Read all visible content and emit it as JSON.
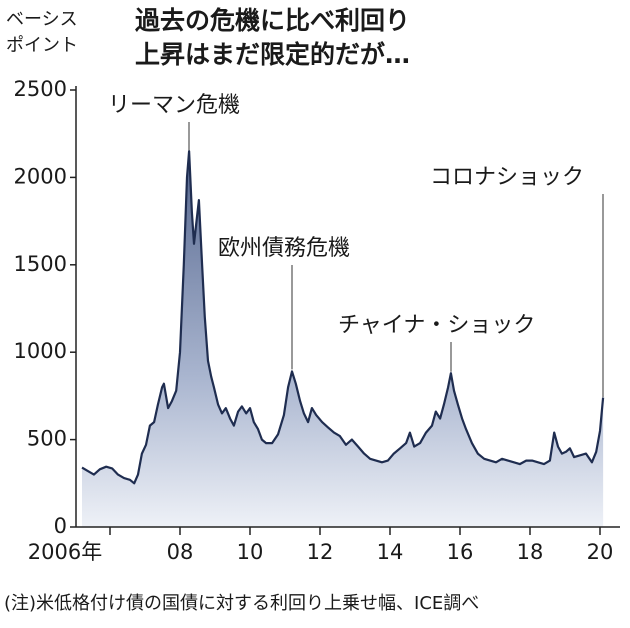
{
  "chart_data": {
    "type": "area",
    "title": [
      "過去の危機に比べ利回り",
      "上昇はまだ限定的だが…"
    ],
    "y_label": [
      "ベーシス",
      "ポイント"
    ],
    "note": "(注)米低格付け債の国債に対する利回り上乗せ幅、ICE調べ",
    "annotations": [
      "リーマン危機",
      "欧州債務危機",
      "チャイナ・ショック",
      "コロナショック"
    ],
    "color": "#1f2d50",
    "x": [
      2005.2,
      2005.37,
      2005.54,
      2005.71,
      2005.89,
      2006.06,
      2006.23,
      2006.4,
      2006.57,
      2006.69,
      2006.8,
      2006.91,
      2007.03,
      2007.14,
      2007.26,
      2007.37,
      2007.49,
      2007.54,
      2007.66,
      2007.77,
      2007.89,
      2008.0,
      2008.11,
      2008.2,
      2008.26,
      2008.34,
      2008.4,
      2008.49,
      2008.54,
      2008.63,
      2008.71,
      2008.8,
      2008.89,
      2008.97,
      2009.09,
      2009.2,
      2009.31,
      2009.43,
      2009.54,
      2009.66,
      2009.77,
      2009.89,
      2010.0,
      2010.11,
      2010.23,
      2010.34,
      2010.46,
      2010.63,
      2010.8,
      2010.97,
      2011.09,
      2011.2,
      2011.31,
      2011.43,
      2011.54,
      2011.66,
      2011.77,
      2011.89,
      2012.06,
      2012.23,
      2012.4,
      2012.57,
      2012.74,
      2012.91,
      2013.09,
      2013.26,
      2013.43,
      2013.6,
      2013.77,
      2013.94,
      2014.11,
      2014.29,
      2014.46,
      2014.57,
      2014.69,
      2014.86,
      2015.03,
      2015.2,
      2015.31,
      2015.43,
      2015.54,
      2015.66,
      2015.74,
      2015.83,
      2015.94,
      2016.06,
      2016.17,
      2016.34,
      2016.51,
      2016.69,
      2016.86,
      2017.03,
      2017.2,
      2017.37,
      2017.54,
      2017.71,
      2017.89,
      2018.06,
      2018.23,
      2018.4,
      2018.57,
      2018.69,
      2018.8,
      2018.91,
      2019.03,
      2019.14,
      2019.26,
      2019.43,
      2019.6,
      2019.77,
      2019.89,
      2020.0,
      2020.09
    ],
    "y": [
      340,
      320,
      300,
      330,
      345,
      335,
      300,
      280,
      270,
      250,
      300,
      420,
      470,
      580,
      600,
      700,
      800,
      820,
      680,
      720,
      780,
      1000,
      1500,
      2000,
      2150,
      1800,
      1620,
      1780,
      1870,
      1500,
      1200,
      950,
      860,
      800,
      700,
      650,
      680,
      620,
      580,
      660,
      690,
      650,
      680,
      600,
      560,
      500,
      480,
      480,
      530,
      640,
      800,
      890,
      820,
      720,
      650,
      600,
      680,
      640,
      600,
      570,
      540,
      520,
      470,
      500,
      460,
      420,
      390,
      380,
      370,
      380,
      420,
      450,
      480,
      540,
      460,
      480,
      540,
      580,
      660,
      620,
      700,
      800,
      880,
      780,
      700,
      620,
      560,
      480,
      420,
      390,
      380,
      370,
      390,
      380,
      370,
      360,
      380,
      380,
      370,
      360,
      380,
      540,
      460,
      420,
      430,
      450,
      400,
      410,
      420,
      370,
      430,
      550,
      740
    ],
    "xlim": [
      2005.2,
      2020.2
    ],
    "xticks": [
      {
        "value": 2006,
        "label": "2006年"
      },
      {
        "value": 2008,
        "label": "08"
      },
      {
        "value": 2010,
        "label": "10"
      },
      {
        "value": 2012,
        "label": "12"
      },
      {
        "value": 2014,
        "label": "14"
      },
      {
        "value": 2016,
        "label": "16"
      },
      {
        "value": 2018,
        "label": "18"
      },
      {
        "value": 2020,
        "label": "20"
      }
    ],
    "ylim": [
      0,
      2500
    ],
    "yticks": [
      0,
      500,
      1000,
      1500,
      2000,
      2500
    ]
  }
}
